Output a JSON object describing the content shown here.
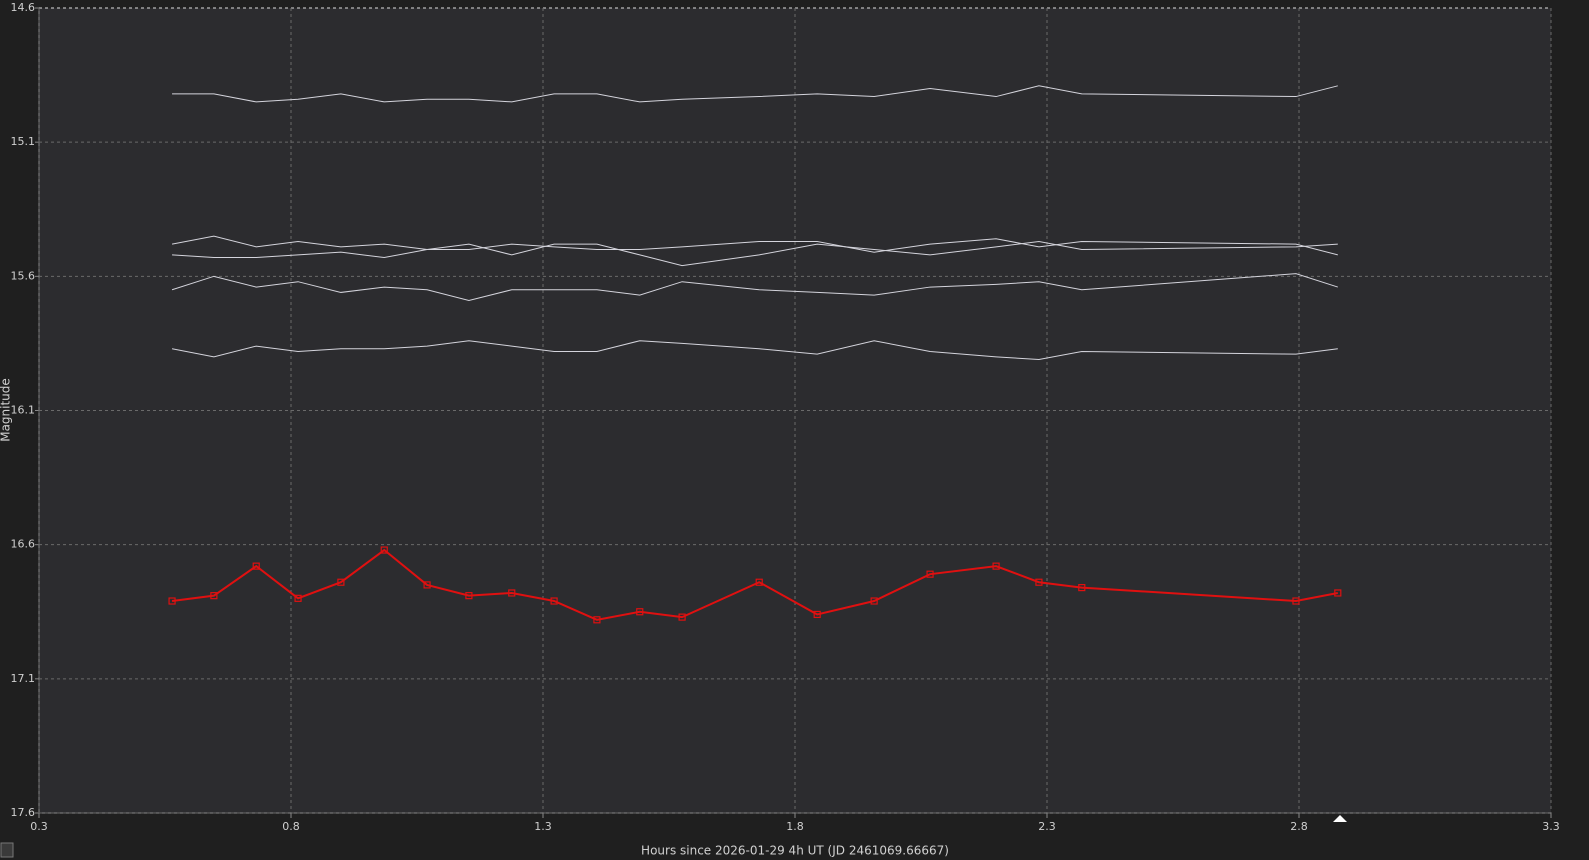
{
  "chart_data": {
    "type": "line",
    "ylabel": "Magnitude",
    "xlabel": "Hours since 2026-01-29 4h UT (JD 2461069.66667)",
    "x": [
      0.564,
      0.647,
      0.731,
      0.814,
      0.899,
      0.985,
      1.07,
      1.153,
      1.238,
      1.322,
      1.407,
      1.492,
      1.576,
      1.729,
      1.844,
      1.957,
      2.068,
      2.199,
      2.284,
      2.369,
      2.794,
      2.877
    ],
    "series": [
      {
        "color": "#d4d4dc",
        "values": [
          14.92,
          14.92,
          14.95,
          14.94,
          14.92,
          14.95,
          14.94,
          14.94,
          14.95,
          14.92,
          14.92,
          14.95,
          14.94,
          14.93,
          14.92,
          14.93,
          14.9,
          14.93,
          14.89,
          14.92,
          14.93,
          14.89
        ]
      },
      {
        "color": "#d4d4dc",
        "values": [
          15.48,
          15.45,
          15.49,
          15.47,
          15.49,
          15.48,
          15.5,
          15.5,
          15.48,
          15.49,
          15.5,
          15.5,
          15.49,
          15.47,
          15.47,
          15.51,
          15.48,
          15.46,
          15.49,
          15.47,
          15.48,
          15.52
        ]
      },
      {
        "color": "#d4d4dc",
        "values": [
          15.52,
          15.53,
          15.53,
          15.52,
          15.51,
          15.53,
          15.5,
          15.48,
          15.52,
          15.48,
          15.48,
          15.52,
          15.56,
          15.52,
          15.48,
          15.5,
          15.52,
          15.49,
          15.47,
          15.5,
          15.49,
          15.48
        ]
      },
      {
        "color": "#d4d4dc",
        "values": [
          15.65,
          15.6,
          15.64,
          15.62,
          15.66,
          15.64,
          15.65,
          15.69,
          15.65,
          15.65,
          15.65,
          15.67,
          15.62,
          15.65,
          15.66,
          15.67,
          15.64,
          15.63,
          15.62,
          15.65,
          15.59,
          15.64
        ]
      },
      {
        "color": "#d4d4dc",
        "values": [
          15.87,
          15.9,
          15.86,
          15.88,
          15.87,
          15.87,
          15.86,
          15.84,
          15.86,
          15.88,
          15.88,
          15.84,
          15.85,
          15.87,
          15.89,
          15.84,
          15.88,
          15.9,
          15.91,
          15.88,
          15.89,
          15.87
        ]
      },
      {
        "color": "#e01010",
        "marker": "square",
        "values": [
          16.81,
          16.79,
          16.68,
          16.8,
          16.74,
          16.62,
          16.75,
          16.79,
          16.78,
          16.81,
          16.88,
          16.85,
          16.87,
          16.74,
          16.86,
          16.81,
          16.71,
          16.68,
          16.74,
          16.76,
          16.81,
          16.78
        ]
      }
    ],
    "xlim": [
      0.3,
      3.3
    ],
    "xticks": [
      0.3,
      0.8,
      1.3,
      1.8,
      2.3,
      2.8,
      3.3
    ],
    "ylim": [
      14.6,
      17.6
    ],
    "yticks": [
      14.6,
      15.1,
      15.6,
      16.1,
      16.6,
      17.1,
      17.6
    ],
    "y_inverted": true,
    "grid": true
  }
}
